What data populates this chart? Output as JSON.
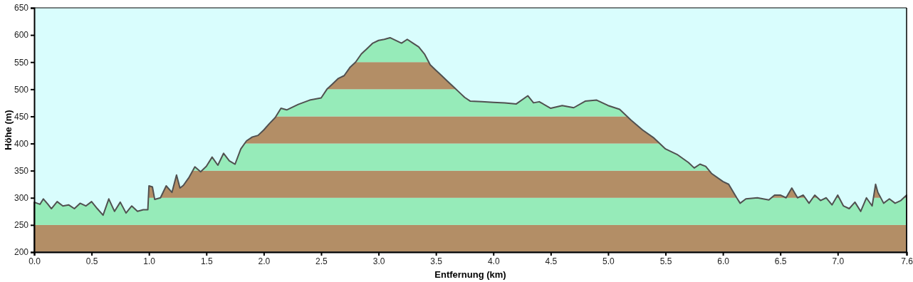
{
  "chart_data": {
    "type": "area",
    "xlabel": "Entfernung  (km)",
    "ylabel": "Höhe (m)",
    "xlim": [
      0,
      7.6
    ],
    "ylim": [
      200,
      650
    ],
    "xticks": [
      {
        "value": 0,
        "label": "0.0"
      },
      {
        "value": 0.5,
        "label": "0.5"
      },
      {
        "value": 1,
        "label": "1.0"
      },
      {
        "value": 1.5,
        "label": "1.5"
      },
      {
        "value": 2,
        "label": "2.0"
      },
      {
        "value": 2.5,
        "label": "2.5"
      },
      {
        "value": 3,
        "label": "3.0"
      },
      {
        "value": 3.5,
        "label": "3.5"
      },
      {
        "value": 4,
        "label": "4.0"
      },
      {
        "value": 4.5,
        "label": "4.5"
      },
      {
        "value": 5,
        "label": "5.0"
      },
      {
        "value": 5.5,
        "label": "5.5"
      },
      {
        "value": 6,
        "label": "6.0"
      },
      {
        "value": 6.5,
        "label": "6.5"
      },
      {
        "value": 7,
        "label": "7.0"
      },
      {
        "value": 7.6,
        "label": "7.6"
      }
    ],
    "yticks": [
      200,
      250,
      300,
      350,
      400,
      450,
      500,
      550,
      600,
      650
    ],
    "grid": false,
    "bands": [
      {
        "axis": "y",
        "from": 200,
        "to": 250,
        "color": "#b89168"
      },
      {
        "axis": "y",
        "from": 250,
        "to": 300,
        "color": "#9af2be"
      },
      {
        "axis": "y",
        "from": 300,
        "to": 350,
        "color": "#b89168"
      },
      {
        "axis": "y",
        "from": 350,
        "to": 400,
        "color": "#9af2be"
      },
      {
        "axis": "y",
        "from": 400,
        "to": 450,
        "color": "#b89168"
      },
      {
        "axis": "y",
        "from": 450,
        "to": 500,
        "color": "#9af2be"
      },
      {
        "axis": "y",
        "from": 500,
        "to": 550,
        "color": "#b89168"
      },
      {
        "axis": "y",
        "from": 550,
        "to": 600,
        "color": "#9af2be"
      }
    ],
    "series": [
      {
        "color": "#505050",
        "x": [
          0,
          0.05,
          0.08,
          0.12,
          0.15,
          0.2,
          0.25,
          0.3,
          0.35,
          0.4,
          0.45,
          0.5,
          0.55,
          0.6,
          0.65,
          0.7,
          0.75,
          0.8,
          0.85,
          0.9,
          0.95,
          0.99,
          1.0,
          1.03,
          1.05,
          1.1,
          1.15,
          1.2,
          1.24,
          1.27,
          1.3,
          1.35,
          1.4,
          1.45,
          1.5,
          1.55,
          1.6,
          1.65,
          1.7,
          1.75,
          1.8,
          1.85,
          1.9,
          1.95,
          2.0,
          2.05,
          2.1,
          2.15,
          2.2,
          2.3,
          2.4,
          2.5,
          2.55,
          2.6,
          2.65,
          2.7,
          2.75,
          2.8,
          2.85,
          2.9,
          2.95,
          3.0,
          3.05,
          3.1,
          3.2,
          3.25,
          3.3,
          3.35,
          3.4,
          3.45,
          3.5,
          3.55,
          3.6,
          3.65,
          3.7,
          3.75,
          3.8,
          3.9,
          4.0,
          4.1,
          4.2,
          4.3,
          4.35,
          4.4,
          4.5,
          4.6,
          4.7,
          4.8,
          4.9,
          5.0,
          5.1,
          5.2,
          5.3,
          5.4,
          5.5,
          5.6,
          5.7,
          5.75,
          5.8,
          5.85,
          5.9,
          6.0,
          6.05,
          6.12,
          6.15,
          6.2,
          6.3,
          6.4,
          6.45,
          6.5,
          6.55,
          6.6,
          6.65,
          6.7,
          6.75,
          6.8,
          6.85,
          6.9,
          6.95,
          7.0,
          7.05,
          7.1,
          7.15,
          7.2,
          7.25,
          7.3,
          7.33,
          7.35,
          7.4,
          7.45,
          7.5,
          7.55,
          7.6
        ],
        "values": [
          292,
          288,
          298,
          288,
          280,
          293,
          285,
          287,
          280,
          290,
          285,
          293,
          280,
          268,
          298,
          275,
          292,
          272,
          285,
          275,
          278,
          278,
          322,
          320,
          297,
          300,
          322,
          310,
          342,
          318,
          323,
          338,
          357,
          348,
          358,
          375,
          360,
          382,
          368,
          362,
          390,
          405,
          412,
          415,
          425,
          437,
          448,
          465,
          462,
          472,
          480,
          484,
          500,
          510,
          520,
          525,
          540,
          550,
          565,
          575,
          585,
          590,
          592,
          595,
          585,
          592,
          585,
          578,
          565,
          545,
          535,
          525,
          515,
          505,
          495,
          485,
          478,
          477,
          476,
          475,
          473,
          488,
          475,
          477,
          465,
          470,
          466,
          478,
          480,
          470,
          463,
          443,
          425,
          410,
          390,
          380,
          365,
          355,
          362,
          358,
          345,
          330,
          325,
          300,
          290,
          298,
          300,
          296,
          305,
          305,
          300,
          318,
          300,
          305,
          290,
          305,
          295,
          300,
          287,
          305,
          285,
          280,
          292,
          275,
          300,
          285,
          325,
          310,
          290,
          298,
          290,
          295,
          305
        ]
      }
    ]
  }
}
